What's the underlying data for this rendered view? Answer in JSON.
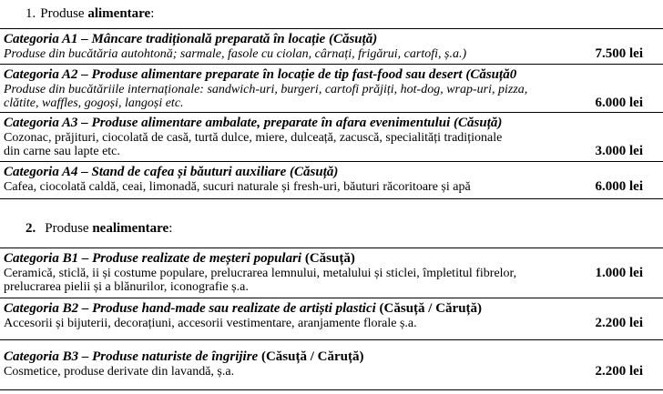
{
  "colors": {
    "background": "#ffffff",
    "text": "#000000",
    "rule": "#000000"
  },
  "section1": {
    "heading": {
      "number": "1.",
      "prefix": "Produse",
      "bold_word": "alimentare",
      "suffix": ":"
    },
    "rows": [
      {
        "title_italic": "Categoria A1 – Mâncare tradițională preparată în locație (Căsuță)",
        "title_plain": "",
        "desc_lines": [
          "Produse din bucătăria autohtonă; sarmale, fasole cu ciolan, cârnați, frigărui, cartofi, ș.a.)"
        ],
        "price": "7.500 lei"
      },
      {
        "title_italic": "Categoria A2 – Produse alimentare preparate în locație de tip fast-food sau desert (Căsuță0",
        "title_plain": "",
        "desc_lines": [
          "Produse din bucătăriile internaționale: sandwich-uri, burgeri, cartofi prăjiți, hot-dog, wrap-uri, pizza,",
          "clătite, waffles, gogoși, langoși etc."
        ],
        "price": "6.000 lei"
      },
      {
        "title_italic": "Categoria A3 – Produse alimentare ambalate, preparate în afara evenimentului (Căsuță)",
        "title_plain": "",
        "desc_lines": [
          "Cozonac, prăjituri, ciocolată de casă, turtă dulce, miere, dulceață, zacuscă, specialități tradiționale",
          "din carne sau lapte etc."
        ],
        "price": "3.000 lei"
      },
      {
        "title_italic": "Categoria A4 – Stand de cafea și băuturi auxiliare (Căsuță)",
        "title_plain": "",
        "desc_lines": [
          "Cafea, ciocolată caldă, ceai, limonadă, sucuri naturale și fresh-uri, băuturi răcoritoare și apă"
        ],
        "price": "6.000 lei"
      }
    ]
  },
  "section2": {
    "heading": {
      "number": "2.",
      "prefix": "Produse",
      "bold_word": "nealimentare",
      "suffix": ":"
    },
    "rows": [
      {
        "title_italic": "Categoria B1 – Produse realizate de meșteri populari",
        "title_plain": " (Căsuță)",
        "desc_lines": [
          "Ceramică, sticlă, ii și costume populare, prelucrarea lemnului, metalului și sticlei, împletitul fibrelor,",
          "prelucrarea pielii și a blănurilor, iconografie ș.a."
        ],
        "price": "1.000 lei"
      },
      {
        "title_italic": "Categoria B2 – Produse hand-made sau realizate de artiști plastici",
        "title_plain": " (Căsuță / Căruță)",
        "desc_lines": [
          "Accesorii și bijuterii, decorațiuni, accesorii vestimentare, aranjamente florale ș.a."
        ],
        "price": "2.200 lei"
      },
      {
        "title_italic": "Categoria B3 – Produse naturiste de îngrijire",
        "title_plain": " (Căsuță / Căruță)",
        "desc_lines": [
          "Cosmetice, produse derivate din lavandă, ș.a."
        ],
        "price": "2.200 lei"
      }
    ]
  }
}
